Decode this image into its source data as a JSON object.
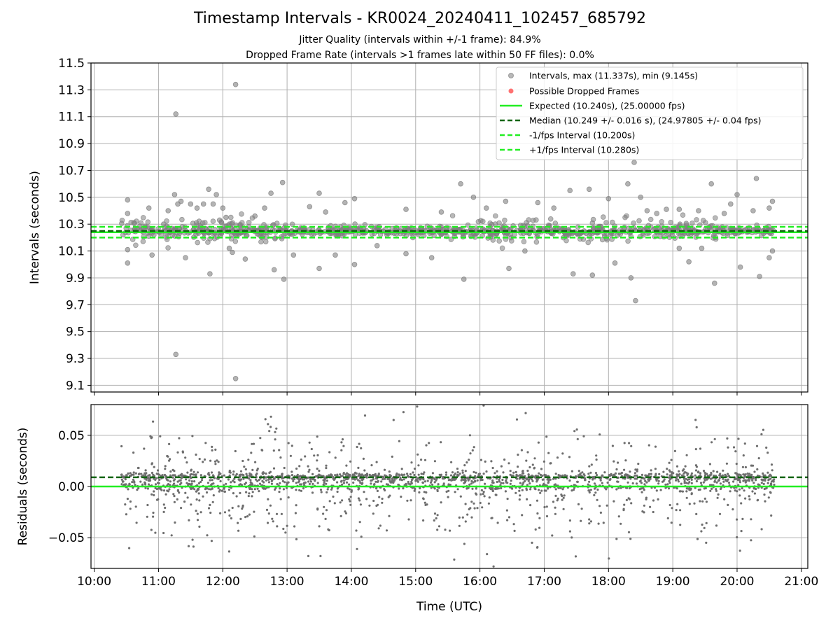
{
  "header": {
    "title": "Timestamp Intervals - KR0024_20240411_102457_685792",
    "subtitle_jitter": "Jitter Quality (intervals within +/-1 frame): 84.9%",
    "subtitle_dropped": "Dropped Frame Rate (intervals >1 frames late within 50 FF files): 0.0%"
  },
  "colors": {
    "points": "#808080",
    "dropped": "#ff4d4d",
    "expected": "#22ee22",
    "median": "#116611",
    "grid": "#b0b0b0"
  },
  "chart_data": [
    {
      "type": "scatter",
      "name_key": "intervals",
      "ylabel": "Intervals (seconds)",
      "xlim": [
        9.95,
        21.1
      ],
      "ylim": [
        9.05,
        11.5
      ],
      "yticks": [
        9.1,
        9.3,
        9.5,
        9.7,
        9.9,
        10.1,
        10.3,
        10.5,
        10.7,
        10.9,
        11.1,
        11.3,
        11.5
      ],
      "ytick_labels": [
        "9.1",
        "9.3",
        "9.5",
        "9.7",
        "9.9",
        "10.1",
        "10.3",
        "10.5",
        "10.7",
        "10.9",
        "11.1",
        "11.3",
        "11.5"
      ],
      "grid": true,
      "legend_position": "top-right",
      "legend": [
        "Intervals, max (11.337s), min (9.145s)",
        "Possible Dropped Frames",
        "Expected (10.240s), (25.00000 fps)",
        "Median (10.249 +/- 0.016 s), (24.97805 +/- 0.04 fps)",
        "-1/fps Interval (10.200s)",
        "+1/fps Interval (10.280s)"
      ],
      "reference_lines": {
        "expected": 10.24,
        "median": 10.249,
        "minus_one_fps": 10.2,
        "plus_one_fps": 10.28
      },
      "time_range": [
        10.42,
        20.58
      ],
      "points": [
        [
          10.52,
          10.48
        ],
        [
          10.52,
          10.38
        ],
        [
          10.52,
          10.11
        ],
        [
          10.52,
          10.01
        ],
        [
          10.85,
          10.42
        ],
        [
          10.9,
          10.07
        ],
        [
          11.08,
          10.3
        ],
        [
          11.15,
          10.4
        ],
        [
          11.25,
          10.52
        ],
        [
          11.27,
          11.12
        ],
        [
          11.27,
          9.33
        ],
        [
          11.3,
          10.45
        ],
        [
          11.35,
          10.47
        ],
        [
          11.42,
          10.05
        ],
        [
          11.5,
          10.45
        ],
        [
          11.6,
          10.42
        ],
        [
          11.7,
          10.45
        ],
        [
          11.78,
          10.56
        ],
        [
          11.8,
          9.93
        ],
        [
          11.85,
          10.45
        ],
        [
          11.9,
          10.52
        ],
        [
          11.95,
          10.33
        ],
        [
          12.0,
          10.42
        ],
        [
          12.05,
          10.35
        ],
        [
          12.1,
          10.12
        ],
        [
          12.15,
          10.09
        ],
        [
          12.2,
          11.34
        ],
        [
          12.2,
          9.15
        ],
        [
          12.35,
          10.04
        ],
        [
          12.5,
          10.36
        ],
        [
          12.65,
          10.42
        ],
        [
          12.75,
          10.53
        ],
        [
          12.8,
          9.96
        ],
        [
          12.93,
          10.61
        ],
        [
          12.95,
          9.89
        ],
        [
          13.1,
          10.07
        ],
        [
          13.35,
          10.43
        ],
        [
          13.5,
          10.53
        ],
        [
          13.5,
          9.97
        ],
        [
          13.6,
          10.39
        ],
        [
          13.75,
          10.07
        ],
        [
          13.9,
          10.46
        ],
        [
          14.05,
          10.49
        ],
        [
          14.05,
          10.0
        ],
        [
          14.4,
          10.14
        ],
        [
          14.85,
          10.41
        ],
        [
          14.85,
          10.08
        ],
        [
          15.25,
          10.05
        ],
        [
          15.4,
          10.39
        ],
        [
          15.7,
          10.6
        ],
        [
          15.75,
          9.89
        ],
        [
          15.9,
          10.5
        ],
        [
          16.1,
          10.42
        ],
        [
          16.4,
          10.47
        ],
        [
          16.45,
          9.97
        ],
        [
          16.7,
          10.1
        ],
        [
          16.9,
          10.46
        ],
        [
          17.15,
          10.42
        ],
        [
          17.4,
          10.55
        ],
        [
          17.45,
          9.93
        ],
        [
          17.7,
          10.56
        ],
        [
          17.75,
          9.92
        ],
        [
          18.0,
          10.49
        ],
        [
          18.1,
          10.01
        ],
        [
          18.3,
          10.6
        ],
        [
          18.35,
          9.9
        ],
        [
          18.4,
          10.76
        ],
        [
          18.42,
          9.73
        ],
        [
          18.5,
          10.5
        ],
        [
          18.6,
          10.4
        ],
        [
          18.75,
          10.38
        ],
        [
          18.9,
          10.41
        ],
        [
          19.1,
          10.41
        ],
        [
          19.1,
          10.12
        ],
        [
          19.25,
          10.02
        ],
        [
          19.4,
          10.4
        ],
        [
          19.45,
          10.12
        ],
        [
          19.6,
          10.6
        ],
        [
          19.65,
          9.86
        ],
        [
          19.8,
          10.38
        ],
        [
          19.9,
          10.45
        ],
        [
          20.0,
          10.52
        ],
        [
          20.05,
          9.98
        ],
        [
          20.25,
          10.4
        ],
        [
          20.3,
          10.64
        ],
        [
          20.35,
          9.91
        ],
        [
          20.5,
          10.42
        ],
        [
          20.5,
          10.05
        ],
        [
          20.55,
          10.47
        ],
        [
          20.55,
          10.1
        ]
      ]
    },
    {
      "type": "scatter",
      "name_key": "residuals",
      "ylabel": "Residuals (seconds)",
      "xlabel": "Time (UTC)",
      "xlim": [
        9.95,
        21.1
      ],
      "ylim": [
        -0.08,
        0.08
      ],
      "yticks": [
        -0.05,
        0.0,
        0.05
      ],
      "ytick_labels": [
        "−0.05",
        "0.00",
        "0.05"
      ],
      "xticks": [
        10,
        11,
        12,
        13,
        14,
        15,
        16,
        17,
        18,
        19,
        20,
        21
      ],
      "xtick_labels": [
        "10:00",
        "11:00",
        "12:00",
        "13:00",
        "14:00",
        "15:00",
        "16:00",
        "17:00",
        "18:00",
        "19:00",
        "20:00",
        "21:00"
      ],
      "grid": true,
      "reference_lines": {
        "expected": 0.0,
        "median": 0.009
      },
      "time_range": [
        10.42,
        20.58
      ]
    }
  ]
}
